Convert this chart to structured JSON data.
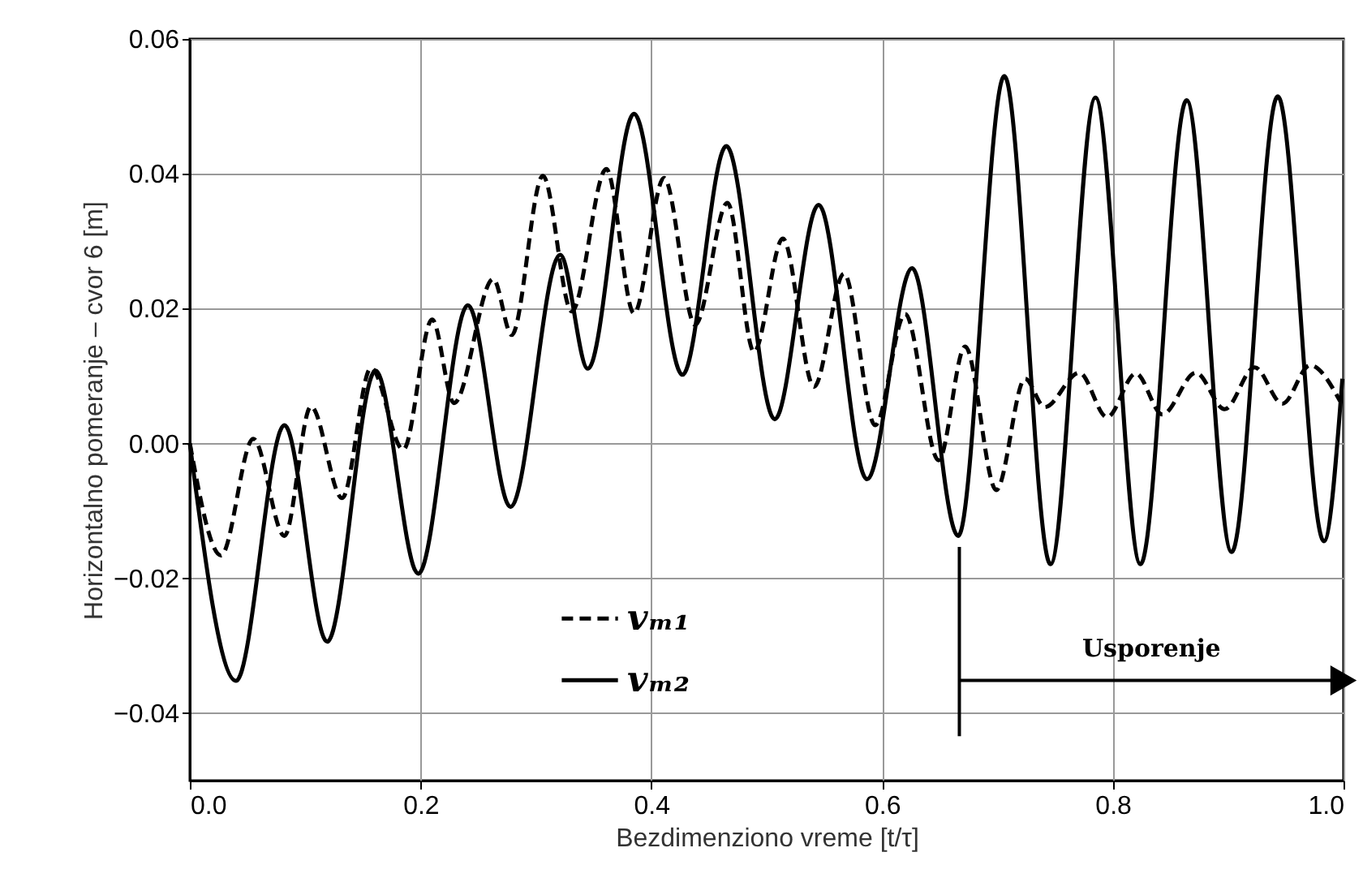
{
  "chart_data": {
    "type": "line",
    "xlabel": "Bezdimenziono vreme [t/τ]",
    "ylabel": "Horizontalno pomeranje – cvor 6 [m]",
    "xlim": [
      0,
      1
    ],
    "ylim": [
      -0.05,
      0.06
    ],
    "xticks": [
      {
        "value": 0,
        "label": "0.0"
      },
      0.2,
      0.4,
      0.6,
      0.8,
      {
        "value": 1,
        "label": "1.0"
      }
    ],
    "yticks": [
      -0.04,
      -0.02,
      {
        "value": 0,
        "label": "0.00"
      },
      0.02,
      0.04,
      0.06
    ],
    "grid": true,
    "legend": "bottom",
    "ref_lines": [
      {
        "axis": "x",
        "value": 0.667
      }
    ],
    "annotations": [
      "Usporenje"
    ],
    "series": [
      {
        "name": "vₘ₁",
        "color": "#000000",
        "line_style": "dashed",
        "x": [
          0,
          0.027,
          0.055,
          0.082,
          0.105,
          0.132,
          0.157,
          0.185,
          0.21,
          0.229,
          0.263,
          0.279,
          0.306,
          0.331,
          0.361,
          0.385,
          0.411,
          0.438,
          0.466,
          0.489,
          0.514,
          0.541,
          0.567,
          0.594,
          0.62,
          0.649,
          0.672,
          0.699,
          0.724,
          0.741,
          0.771,
          0.795,
          0.82,
          0.843,
          0.872,
          0.897,
          0.923,
          0.947,
          0.971,
          0.997
        ],
        "values": [
          0,
          -0.0166,
          0.0007,
          -0.0137,
          0.0055,
          -0.0081,
          0.0112,
          -0.0009,
          0.0184,
          0.006,
          0.0244,
          0.0161,
          0.0397,
          0.0196,
          0.0407,
          0.0193,
          0.0394,
          0.0176,
          0.0357,
          0.0136,
          0.0304,
          0.0084,
          0.0252,
          0.0027,
          0.0192,
          -0.0025,
          0.0144,
          -0.0069,
          0.0096,
          0.0054,
          0.0105,
          0.0039,
          0.0104,
          0.0043,
          0.0105,
          0.0051,
          0.0113,
          0.0059,
          0.0116,
          0.0063
        ]
      },
      {
        "name": "vₘ₂",
        "color": "#000000",
        "line_style": "solid",
        "x": [
          0,
          0.04,
          0.082,
          0.119,
          0.161,
          0.198,
          0.241,
          0.278,
          0.321,
          0.345,
          0.385,
          0.427,
          0.465,
          0.507,
          0.545,
          0.587,
          0.626,
          0.666,
          0.706,
          0.746,
          0.785,
          0.824,
          0.864,
          0.903,
          0.943,
          0.983,
          0.999
        ],
        "values": [
          0,
          -0.0352,
          0.0027,
          -0.0294,
          0.0108,
          -0.0193,
          0.0205,
          -0.0094,
          0.028,
          0.0111,
          0.0489,
          0.0102,
          0.0441,
          0.0036,
          0.0354,
          -0.0053,
          0.026,
          -0.0137,
          0.0545,
          -0.0179,
          0.0513,
          -0.0179,
          0.0509,
          -0.0161,
          0.0515,
          -0.0145,
          0.0096
        ]
      }
    ]
  }
}
